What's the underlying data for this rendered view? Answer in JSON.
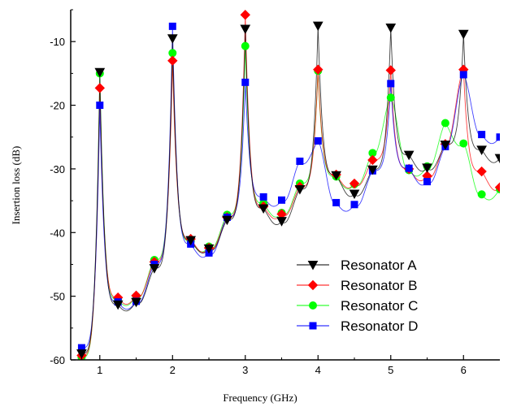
{
  "chart_data": {
    "type": "line",
    "xlabel": "Frequency (GHz)",
    "ylabel": "Insertion loss (dB)",
    "xlim": [
      0.6,
      6.5
    ],
    "ylim": [
      -60,
      -5
    ],
    "xticks": [
      "1",
      "2",
      "3",
      "4",
      "5",
      "6"
    ],
    "yticks": [
      "-60",
      "-50",
      "-40",
      "-30",
      "-20",
      "-10"
    ],
    "legend_position": "bottom-right",
    "grid": false,
    "series": [
      {
        "name": "Resonator A",
        "color": "#000000",
        "marker": "triangle-down",
        "x": [
          0.75,
          1.0,
          1.25,
          1.5,
          1.75,
          2.0,
          2.25,
          2.5,
          2.75,
          3.0,
          3.25,
          3.5,
          3.75,
          4.0,
          4.25,
          4.5,
          4.75,
          5.0,
          5.25,
          5.5,
          5.75,
          6.0,
          6.25,
          6.5
        ],
        "y": [
          -59.0,
          -14.8,
          -51.3,
          -50.9,
          -45.6,
          -9.5,
          -41.2,
          -42.5,
          -38.0,
          -8.0,
          -36.2,
          -38.2,
          -33.2,
          -7.5,
          -31.0,
          -33.9,
          -30.1,
          -7.8,
          -27.8,
          -29.8,
          -26.2,
          -8.8,
          -27.0,
          -28.3
        ]
      },
      {
        "name": "Resonator B",
        "color": "#ff0000",
        "marker": "diamond",
        "x": [
          0.75,
          1.0,
          1.25,
          1.5,
          1.75,
          2.0,
          2.25,
          2.5,
          2.75,
          3.0,
          3.25,
          3.5,
          3.75,
          4.0,
          4.25,
          4.5,
          4.75,
          5.0,
          5.25,
          5.5,
          5.75,
          6.0,
          6.25,
          6.5
        ],
        "y": [
          -59.3,
          -17.3,
          -50.2,
          -49.9,
          -44.6,
          -13.0,
          -41.0,
          -42.4,
          -37.6,
          -5.8,
          -35.9,
          -37.1,
          -32.8,
          -14.4,
          -30.9,
          -32.3,
          -28.6,
          -14.5,
          -30.0,
          -31.1,
          -26.1,
          -14.4,
          -30.4,
          -32.9
        ]
      },
      {
        "name": "Resonator C",
        "color": "#00ff00",
        "marker": "circle",
        "x": [
          0.75,
          1.0,
          1.25,
          1.5,
          1.75,
          2.0,
          2.25,
          2.5,
          2.75,
          3.0,
          3.25,
          3.5,
          3.75,
          4.0,
          4.25,
          4.5,
          4.75,
          5.0,
          5.25,
          5.5,
          5.75,
          6.0,
          6.25,
          6.5
        ],
        "y": [
          -59.6,
          -15.0,
          -50.5,
          -50.0,
          -44.3,
          -11.8,
          -41.3,
          -42.2,
          -37.2,
          -10.7,
          -35.4,
          -36.9,
          -32.3,
          -14.6,
          -31.2,
          -32.4,
          -27.5,
          -18.8,
          -30.2,
          -29.6,
          -22.8,
          -26.0,
          -34.0,
          -33.2
        ]
      },
      {
        "name": "Resonator D",
        "color": "#0000ff",
        "marker": "square",
        "x": [
          0.75,
          1.0,
          1.25,
          1.5,
          1.75,
          2.0,
          2.25,
          2.5,
          2.75,
          3.0,
          3.25,
          3.5,
          3.75,
          4.0,
          4.25,
          4.5,
          4.75,
          5.0,
          5.25,
          5.5,
          5.75,
          6.0,
          6.25,
          6.5
        ],
        "y": [
          -58.1,
          -20.0,
          -50.9,
          -50.8,
          -45.0,
          -7.6,
          -41.8,
          -43.2,
          -37.6,
          -16.4,
          -34.4,
          -34.9,
          -28.8,
          -25.6,
          -35.3,
          -35.6,
          -30.3,
          -16.6,
          -29.9,
          -32.0,
          -26.5,
          -15.2,
          -24.6,
          -25.0
        ]
      }
    ]
  }
}
